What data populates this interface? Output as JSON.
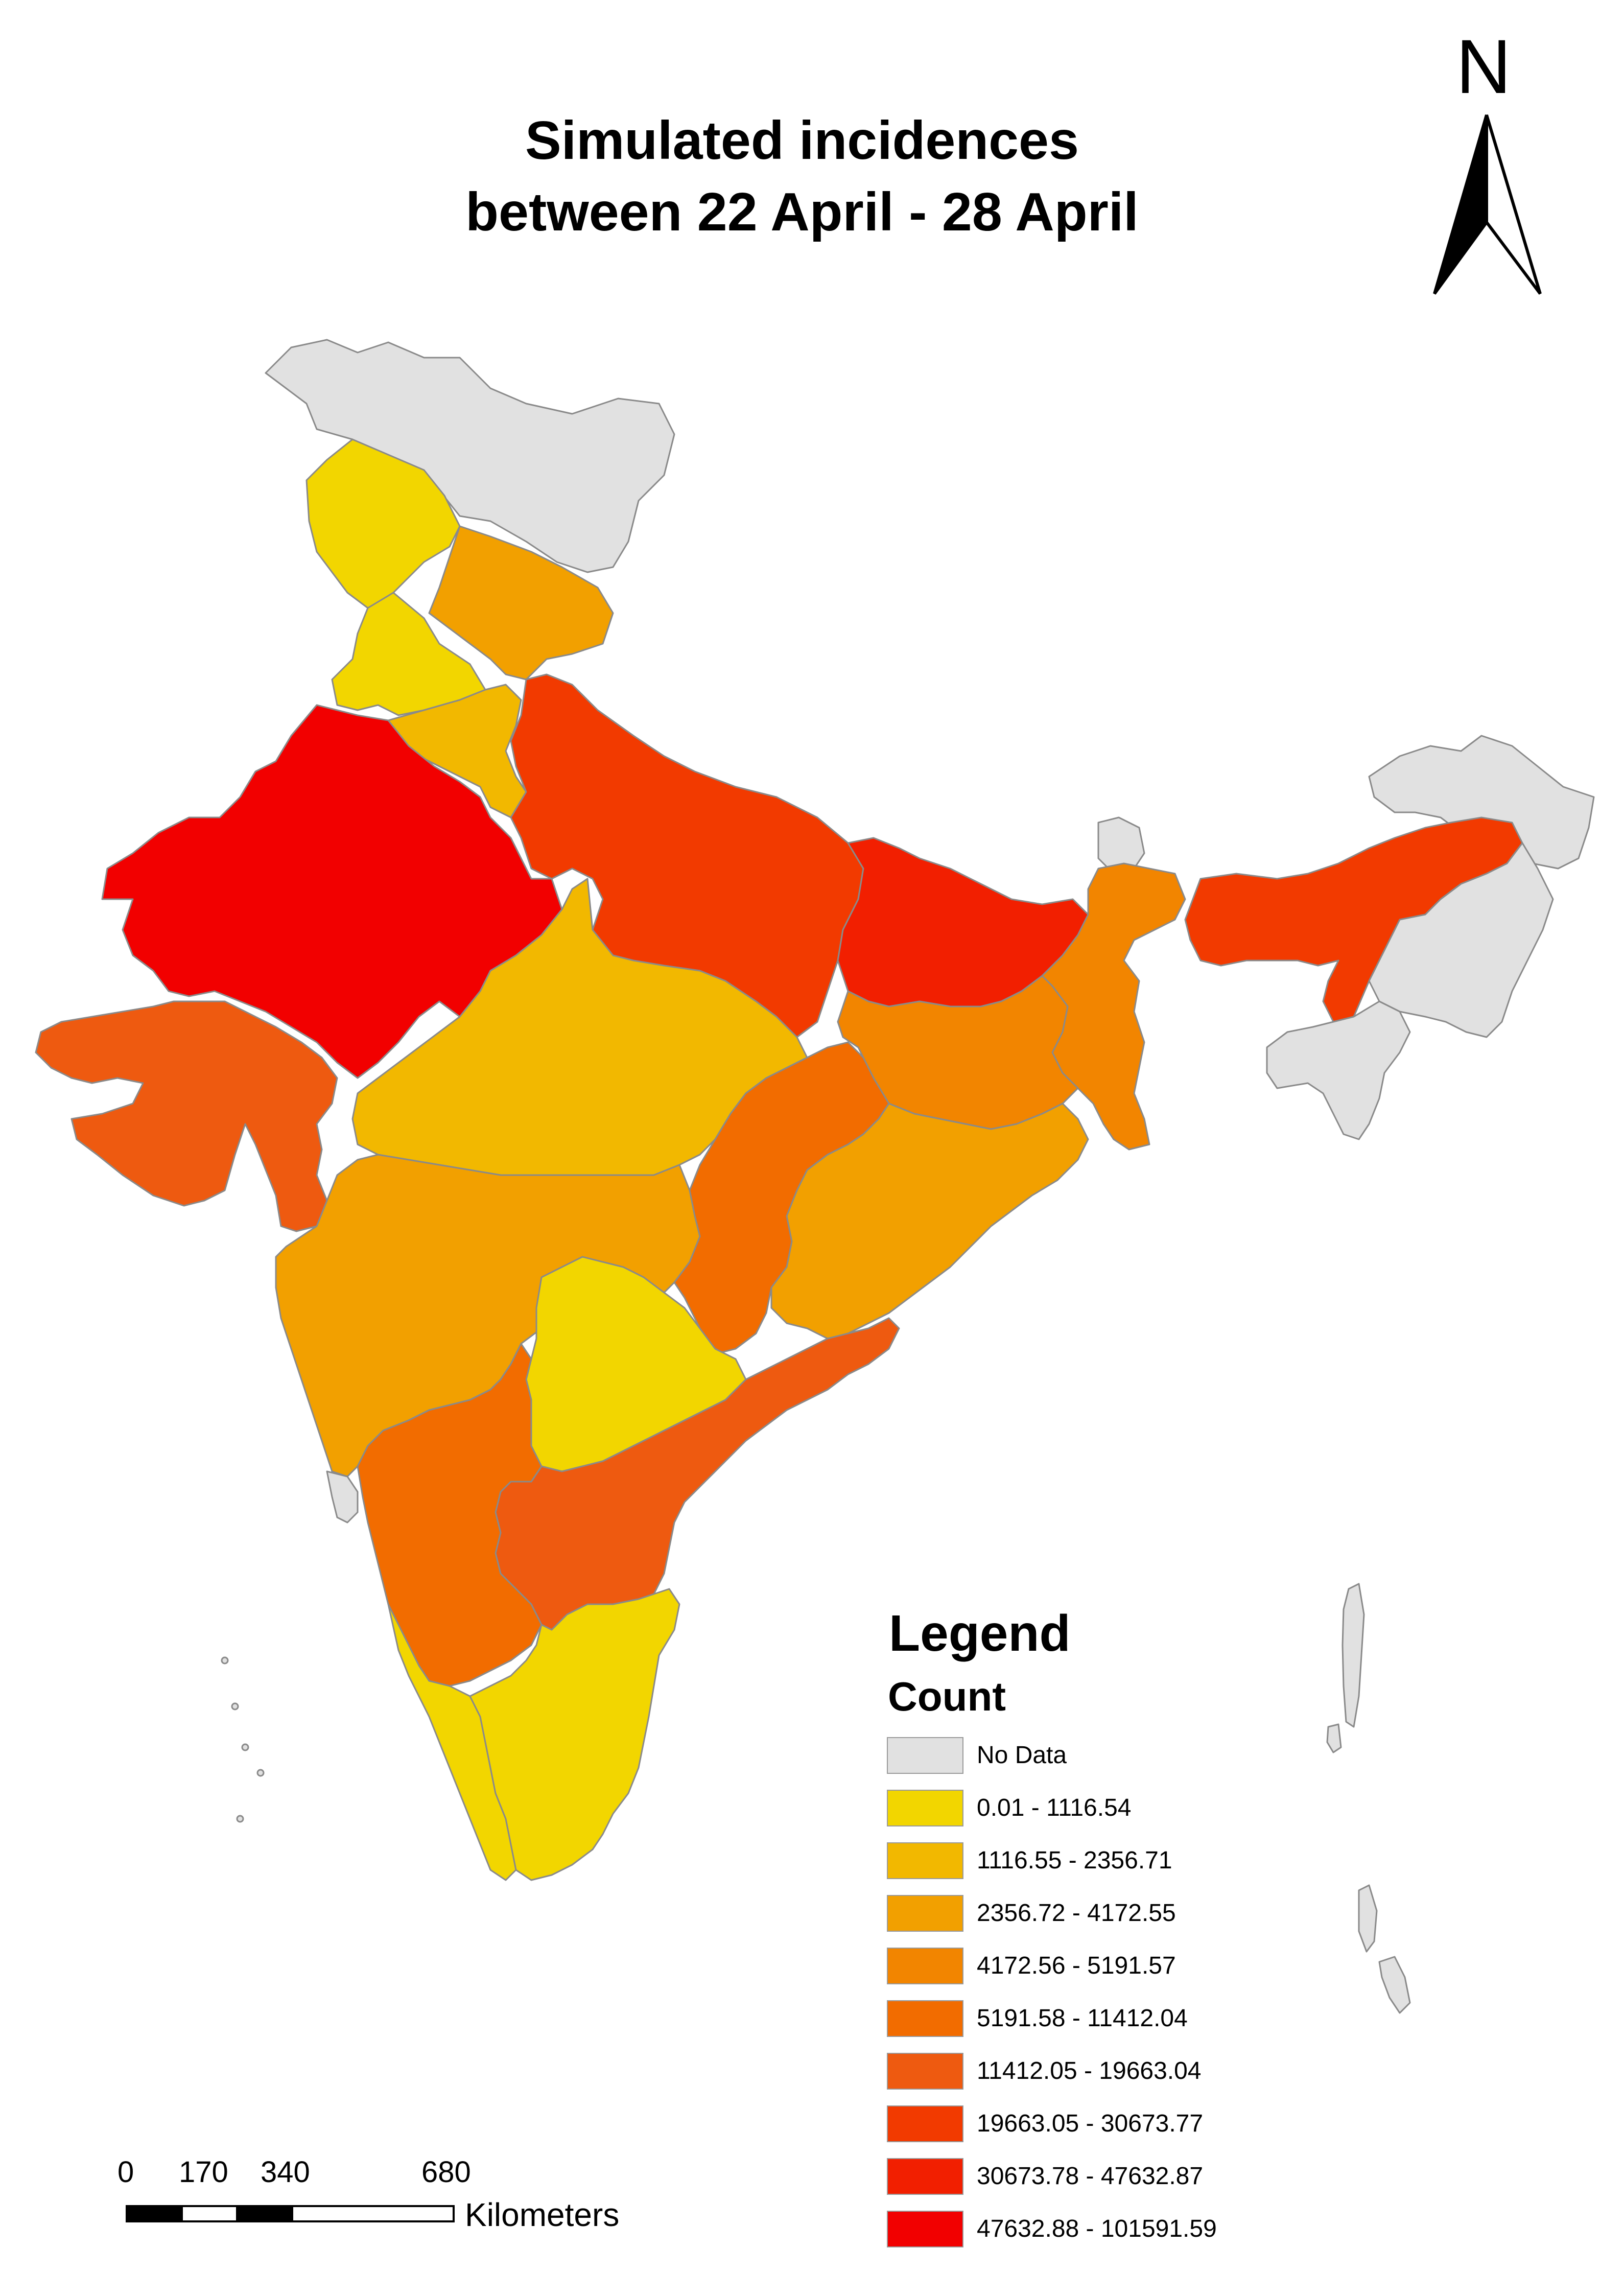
{
  "title": {
    "line1": "Simulated incidences",
    "line2": "between 22 April - 28 April"
  },
  "north_arrow": {
    "label": "N",
    "icon": "north-arrow-icon"
  },
  "legend": {
    "title": "Legend",
    "subtitle": "Count",
    "items": [
      {
        "label": "No Data",
        "color": "#e1e1e1"
      },
      {
        "label": "0.01 - 1116.54",
        "color": "#f2d600"
      },
      {
        "label": "1116.55 - 2356.71",
        "color": "#f2b800"
      },
      {
        "label": "2356.72 - 4172.55",
        "color": "#f2a000"
      },
      {
        "label": "4172.56 - 5191.57",
        "color": "#f28500"
      },
      {
        "label": "5191.58 - 11412.04",
        "color": "#f26c00"
      },
      {
        "label": "11412.05 - 19663.04",
        "color": "#ee5a10"
      },
      {
        "label": "19663.05 - 30673.77",
        "color": "#f23a00"
      },
      {
        "label": "30673.78 - 47632.87",
        "color": "#f21f00"
      },
      {
        "label": "47632.88 - 101591.59",
        "color": "#f20000"
      }
    ]
  },
  "scale_bar": {
    "labels": [
      "0",
      "170",
      "340",
      "680"
    ],
    "unit": "Kilometers"
  },
  "regions": [
    {
      "name": "Jammu and Kashmir",
      "class": 0
    },
    {
      "name": "Himachal Pradesh",
      "class": 1
    },
    {
      "name": "Punjab",
      "class": 1
    },
    {
      "name": "Uttarakhand",
      "class": 3
    },
    {
      "name": "Haryana",
      "class": 2
    },
    {
      "name": "Rajasthan",
      "class": 9
    },
    {
      "name": "Uttar Pradesh",
      "class": 7
    },
    {
      "name": "Bihar",
      "class": 8
    },
    {
      "name": "Sikkim",
      "class": 0
    },
    {
      "name": "West Bengal",
      "class": 4
    },
    {
      "name": "Assam",
      "class": 7
    },
    {
      "name": "Arunachal Pradesh",
      "class": 0
    },
    {
      "name": "Meghalaya",
      "class": 0
    },
    {
      "name": "Gujarat",
      "class": 6
    },
    {
      "name": "Madhya Pradesh",
      "class": 2
    },
    {
      "name": "Jharkhand",
      "class": 4
    },
    {
      "name": "Chhattisgarh",
      "class": 5
    },
    {
      "name": "Odisha",
      "class": 3
    },
    {
      "name": "Maharashtra",
      "class": 3
    },
    {
      "name": "Telangana",
      "class": 1
    },
    {
      "name": "Andhra Pradesh",
      "class": 6
    },
    {
      "name": "Karnataka",
      "class": 5
    },
    {
      "name": "Goa",
      "class": 0
    },
    {
      "name": "Kerala",
      "class": 1
    },
    {
      "name": "Tamil Nadu",
      "class": 1
    },
    {
      "name": "Andaman and Nicobar Islands",
      "class": 0
    },
    {
      "name": "Lakshadweep",
      "class": 0
    }
  ]
}
